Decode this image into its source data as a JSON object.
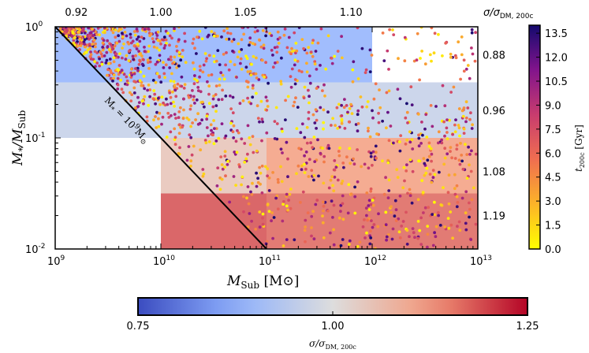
{
  "chart_data": {
    "type": "scatter",
    "xlabel": "M_Sub [M⊙]",
    "ylabel": "M*/M_Sub",
    "x_scale": "log",
    "y_scale": "log",
    "xlim": [
      1000000000.0,
      10000000000000.0
    ],
    "ylim": [
      0.01,
      1
    ],
    "x_tick_labels": [
      "10^9",
      "10^10",
      "10^11",
      "10^12",
      "10^13"
    ],
    "x_tick_values": [
      9,
      10,
      11,
      12,
      13
    ],
    "y_tick_labels": [
      "10^-2",
      "10^-1",
      "10^0"
    ],
    "y_tick_values": [
      -2,
      -1,
      0
    ],
    "top_axis": {
      "label": "σ/σDM, 200c",
      "tick_labels": [
        "0.92",
        "1.00",
        "1.05",
        "1.10"
      ],
      "tick_positions_log_msub": [
        9.2,
        10.0,
        10.8,
        11.8
      ]
    },
    "right_axis": {
      "label": "σ/σDM, 200c",
      "tick_labels": [
        "0.88",
        "0.96",
        "1.08",
        "1.19"
      ],
      "tick_positions_log_ratio": [
        -0.25,
        -0.75,
        -1.3,
        -1.7
      ]
    },
    "diagonal_line": {
      "label": "M* = 10^9 M⊙",
      "log_mstar": 9
    },
    "bins": [
      {
        "x_range_log": [
          9,
          12
        ],
        "y_range_log": [
          -0.5,
          0
        ],
        "sigma_ratio": 0.88
      },
      {
        "x_range_log": [
          9,
          13
        ],
        "y_range_log": [
          -1.0,
          -0.5
        ],
        "sigma_ratio": 0.96
      },
      {
        "x_range_log": [
          10,
          11
        ],
        "y_range_log": [
          -1.5,
          -1.0
        ],
        "sigma_ratio": 1.05
      },
      {
        "x_range_log": [
          11,
          13
        ],
        "y_range_log": [
          -1.5,
          -1.0
        ],
        "sigma_ratio": 1.12
      },
      {
        "x_range_log": [
          10,
          11
        ],
        "y_range_log": [
          -2.0,
          -1.5
        ],
        "sigma_ratio": 1.19
      },
      {
        "x_range_log": [
          11,
          12
        ],
        "y_range_log": [
          -2.0,
          -1.5
        ],
        "sigma_ratio": 1.17
      },
      {
        "x_range_log": [
          12,
          13
        ],
        "y_range_log": [
          -2.0,
          -1.5
        ],
        "sigma_ratio": 1.17
      }
    ],
    "points_generated": 1600,
    "point_color_key": "t_200c [Gyr]",
    "colorbar_right": {
      "label": "t_200c [Gyr]",
      "ticks": [
        "0.0",
        "1.5",
        "3.0",
        "4.5",
        "6.0",
        "7.5",
        "9.0",
        "10.5",
        "12.0",
        "13.5"
      ],
      "min": 0.0,
      "max": 14.0
    },
    "colorbar_bottom": {
      "label": "σ/σDM, 200c",
      "ticks": [
        "0.75",
        "1.00",
        "1.25"
      ],
      "min": 0.75,
      "max": 1.25
    }
  },
  "labels": {
    "xlabel_main": "M",
    "xlabel_sub": "Sub",
    "xlabel_unit_open": " [M",
    "xlabel_unit_close": "]",
    "ylabel_num": "M",
    "ylabel_star": "*",
    "ylabel_slash": "/M",
    "ylabel_sub": "Sub",
    "sigma_text": "σ/σ",
    "sigma_sub": "DM, 200c",
    "diag_text": "M",
    "diag_star": "*",
    "diag_eq": " = 10",
    "diag_exp": "9",
    "diag_unit": "M",
    "cbar_t": "t",
    "cbar_t_sub": "200c",
    "cbar_t_unit": " [Gyr]",
    "tick_base": "10"
  },
  "colors": {
    "frame": "#000000",
    "line": "#000000"
  }
}
